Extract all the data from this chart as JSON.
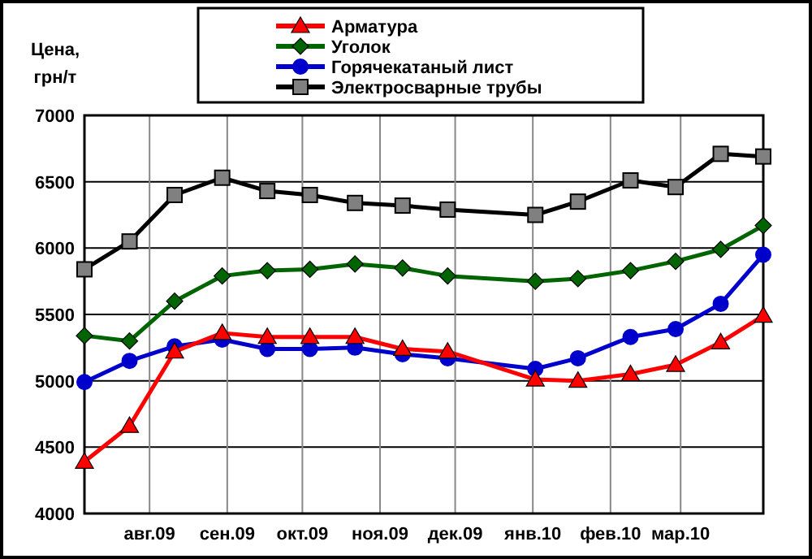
{
  "chart_data": {
    "type": "line",
    "ylabel": "Цена, грн/т",
    "x": [
      "2009-07-06",
      "2009-07-24",
      "2009-08-11",
      "2009-08-30",
      "2009-09-17",
      "2009-10-04",
      "2009-10-22",
      "2009-11-10",
      "2009-11-28",
      "2010-01-02",
      "2010-01-19",
      "2010-02-09",
      "2010-02-27",
      "2010-03-17",
      "2010-04-03"
    ],
    "xlim": [
      "2009-07-06",
      "2010-04-03"
    ],
    "xticks": [
      {
        "value": "2009-08-01",
        "label": "авг.09"
      },
      {
        "value": "2009-09-01",
        "label": "сен.09"
      },
      {
        "value": "2009-10-01",
        "label": "окт.09"
      },
      {
        "value": "2009-11-01",
        "label": "ноя.09"
      },
      {
        "value": "2009-12-01",
        "label": "дек.09"
      },
      {
        "value": "2010-01-01",
        "label": "янв.10"
      },
      {
        "value": "2010-02-01",
        "label": "фев.10"
      },
      {
        "value": "2010-03-01",
        "label": "мар.10"
      }
    ],
    "ylim": [
      4000,
      7000
    ],
    "yticks": [
      4000,
      4500,
      5000,
      5500,
      6000,
      6500,
      7000
    ],
    "grid": true,
    "legend": "top",
    "series": [
      {
        "name": "Арматура",
        "color": "#ff0000",
        "marker": "triangle",
        "values": [
          4390,
          4660,
          5220,
          5360,
          5330,
          5330,
          5330,
          5240,
          5220,
          5010,
          5000,
          5050,
          5120,
          5290,
          5490
        ]
      },
      {
        "name": "Уголок",
        "color": "#006400",
        "marker": "diamond",
        "values": [
          5340,
          5300,
          5600,
          5790,
          5830,
          5840,
          5880,
          5850,
          5790,
          5750,
          5770,
          5830,
          5900,
          5990,
          6170
        ]
      },
      {
        "name": "Горячекатаный лист",
        "color": "#0000cc",
        "marker": "circle",
        "values": [
          4990,
          5150,
          5260,
          5310,
          5240,
          5240,
          5250,
          5200,
          5170,
          5090,
          5170,
          5330,
          5390,
          5580,
          5950
        ]
      },
      {
        "name": "Электросварные трубы",
        "color": "#000000",
        "marker": "square",
        "values": [
          5840,
          6050,
          6400,
          6530,
          6430,
          6400,
          6340,
          6320,
          6290,
          6250,
          6350,
          6510,
          6460,
          6710,
          6690
        ]
      }
    ]
  }
}
